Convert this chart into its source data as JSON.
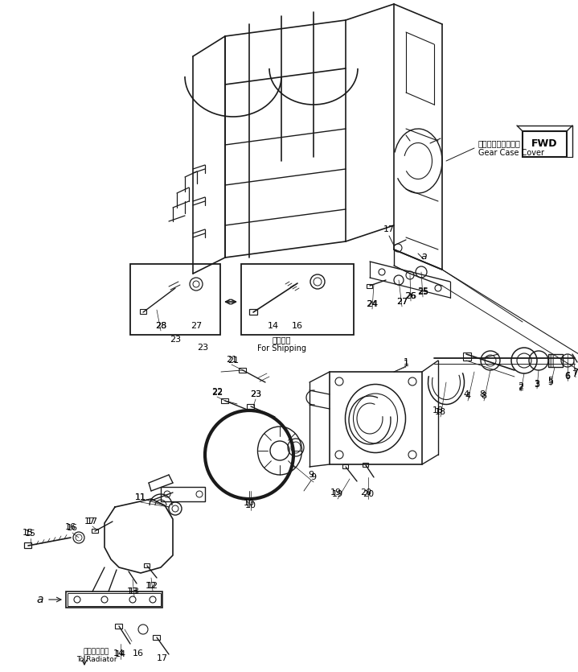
{
  "background_color": "#ffffff",
  "line_color": "#1a1a1a",
  "figsize": [
    7.19,
    8.35
  ],
  "dpi": 100,
  "annotations": {
    "gear_case_cover_jp": "ギヤーケースカバー",
    "gear_case_cover_en": "Gear Case Cover",
    "fwd_label": "FWD",
    "for_shipping_jp": "選択部品",
    "for_shipping_en": "For Shipping",
    "to_radiator_jp": "ラジエータへ",
    "to_radiator_en": "To Radiator"
  }
}
